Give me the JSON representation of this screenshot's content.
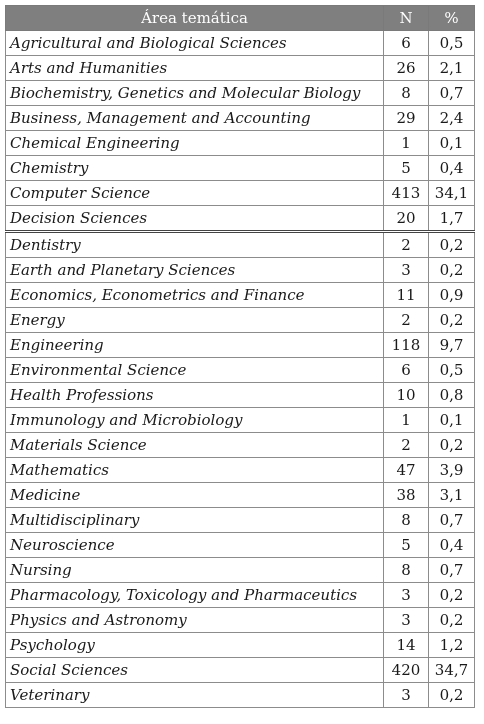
{
  "table": {
    "headers": {
      "area": "Área temática",
      "n": "N",
      "pct": "%"
    },
    "rows": [
      {
        "area": "Agricultural and Biological Sciences",
        "n": "6",
        "pct": "0,5"
      },
      {
        "area": "Arts and Humanities",
        "n": "26",
        "pct": "2,1"
      },
      {
        "area": "Biochemistry, Genetics and Molecular Biology",
        "n": "8",
        "pct": "0,7"
      },
      {
        "area": "Business, Management and Accounting",
        "n": "29",
        "pct": "2,4"
      },
      {
        "area": "Chemical Engineering",
        "n": "1",
        "pct": "0,1"
      },
      {
        "area": "Chemistry",
        "n": "5",
        "pct": "0,4"
      },
      {
        "area": "Computer Science",
        "n": "413",
        "pct": "34,1"
      },
      {
        "area": "Decision Sciences",
        "n": "20",
        "pct": "1,7"
      },
      {
        "area": "Dentistry",
        "n": "2",
        "pct": "0,2"
      },
      {
        "area": "Earth and Planetary Sciences",
        "n": "3",
        "pct": "0,2"
      },
      {
        "area": "Economics, Econometrics and Finance",
        "n": "11",
        "pct": "0,9"
      },
      {
        "area": "Energy",
        "n": "2",
        "pct": "0,2"
      },
      {
        "area": "Engineering",
        "n": "118",
        "pct": "9,7"
      },
      {
        "area": "Environmental Science",
        "n": "6",
        "pct": "0,5"
      },
      {
        "area": "Health Professions",
        "n": "10",
        "pct": "0,8"
      },
      {
        "area": "Immunology and Microbiology",
        "n": "1",
        "pct": "0,1"
      },
      {
        "area": "Materials Science",
        "n": "2",
        "pct": "0,2"
      },
      {
        "area": "Mathematics",
        "n": "47",
        "pct": "3,9"
      },
      {
        "area": "Medicine",
        "n": "38",
        "pct": "3,1"
      },
      {
        "area": "Multidisciplinary",
        "n": "8",
        "pct": "0,7"
      },
      {
        "area": "Neuroscience",
        "n": "5",
        "pct": "0,4"
      },
      {
        "area": "Nursing",
        "n": "8",
        "pct": "0,7"
      },
      {
        "area": "Pharmacology, Toxicology and Pharmaceutics",
        "n": "3",
        "pct": "0,2"
      },
      {
        "area": "Physics and Astronomy",
        "n": "3",
        "pct": "0,2"
      },
      {
        "area": "Psychology",
        "n": "14",
        "pct": "1,2"
      },
      {
        "area": "Social Sciences",
        "n": "420",
        "pct": "34,7"
      },
      {
        "area": "Veterinary",
        "n": "3",
        "pct": "0,2"
      }
    ]
  }
}
